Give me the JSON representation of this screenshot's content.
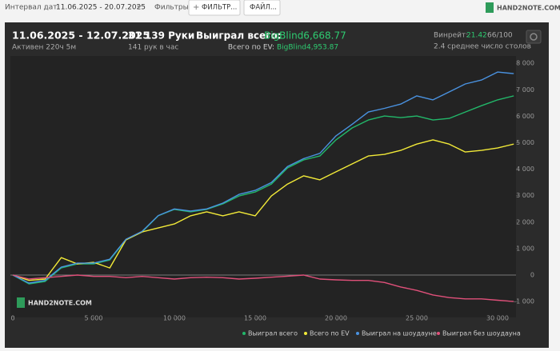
{
  "toolbar": {
    "date_label": "Интервал дат:",
    "date_range": "11.06.2025 - 20.07.2025",
    "filters_label": "Фильтры:",
    "filter_button": "ФИЛЬТР...",
    "file_button": "ФАЙЛ...",
    "logo": "HAND2NOTE.COM"
  },
  "summary": {
    "period": "11.06.2025 - 12.07.2025",
    "active": "Активен 220ч 5м",
    "hands": "31 139 Руки",
    "hands_per_hour": "141 рук в час",
    "won_label": "Выиграл всего:",
    "won_value": "BigBlind6,668.77",
    "ev_label": "Всего по EV:",
    "ev_value": "BigBlind4,953.87",
    "winrate_label": "Винрейт:",
    "winrate_value": "21.42",
    "winrate_hands": "66/100",
    "tables": "2.4 среднее число столов",
    "watermark": "HAND2NOTE.COM"
  },
  "chart_data": {
    "type": "line",
    "x": [
      0,
      1000,
      2000,
      3000,
      4000,
      5000,
      6000,
      7000,
      8000,
      9000,
      10000,
      11000,
      12000,
      13000,
      14000,
      15000,
      16000,
      17000,
      18000,
      19000,
      20000,
      21000,
      22000,
      23000,
      24000,
      25000,
      26000,
      27000,
      28000,
      29000,
      30000,
      31000
    ],
    "series": [
      {
        "name": "Выиграл всего",
        "color": "#22b86a",
        "values": [
          0,
          -330,
          -240,
          270,
          420,
          420,
          570,
          1330,
          1630,
          2240,
          2480,
          2390,
          2480,
          2690,
          2990,
          3140,
          3440,
          4050,
          4350,
          4500,
          5110,
          5560,
          5860,
          6010,
          5950,
          6010,
          5860,
          5920,
          6160,
          6400,
          6620,
          6770
        ]
      },
      {
        "name": "Всего по EV",
        "color": "#f2ea38",
        "values": [
          0,
          -200,
          -150,
          660,
          420,
          480,
          270,
          1330,
          1630,
          1780,
          1930,
          2240,
          2390,
          2240,
          2390,
          2240,
          2990,
          3440,
          3750,
          3600,
          3900,
          4200,
          4500,
          4560,
          4710,
          4950,
          5110,
          4950,
          4650,
          4710,
          4800,
          4950
        ]
      },
      {
        "name": "Выиграл на шоудауне",
        "color": "#4a92e0",
        "values": [
          0,
          -300,
          -200,
          300,
          450,
          450,
          600,
          1350,
          1650,
          2250,
          2500,
          2420,
          2500,
          2720,
          3050,
          3200,
          3500,
          4100,
          4400,
          4600,
          5260,
          5700,
          6160,
          6300,
          6460,
          6770,
          6620,
          6920,
          7220,
          7370,
          7670,
          7610
        ]
      },
      {
        "name": "Выиграл без шоудауна",
        "color": "#e0507a",
        "values": [
          0,
          -150,
          -100,
          -50,
          0,
          -50,
          -50,
          -100,
          -50,
          -100,
          -150,
          -100,
          -80,
          -100,
          -150,
          -120,
          -80,
          -40,
          0,
          -150,
          -180,
          -200,
          -200,
          -280,
          -450,
          -580,
          -750,
          -850,
          -900,
          -900,
          -950,
          -1000
        ]
      }
    ],
    "xlim": [
      0,
      31139
    ],
    "ylim": [
      -1600,
      8200
    ],
    "xticks": [
      0,
      {
        "value": 5000,
        "label": "5 000"
      },
      {
        "value": 10000,
        "label": "10 000"
      },
      {
        "value": 15000,
        "label": "15 000"
      },
      {
        "value": 20000,
        "label": "20 000"
      },
      {
        "value": 25000,
        "label": "25 000"
      },
      {
        "value": 30000,
        "label": "30 000"
      }
    ],
    "yticks": [
      {
        "value": -1000,
        "label": "-1 000"
      },
      0,
      {
        "value": 1000,
        "label": "1 000"
      },
      {
        "value": 2000,
        "label": "2 000"
      },
      {
        "value": 3000,
        "label": "3 000"
      },
      {
        "value": 4000,
        "label": "4 000"
      },
      {
        "value": 5000,
        "label": "5 000"
      },
      {
        "value": 6000,
        "label": "6 000"
      },
      {
        "value": 7000,
        "label": "7 000"
      },
      {
        "value": 8000,
        "label": "8 000"
      }
    ],
    "grid": false,
    "legend": "bottom-right"
  }
}
